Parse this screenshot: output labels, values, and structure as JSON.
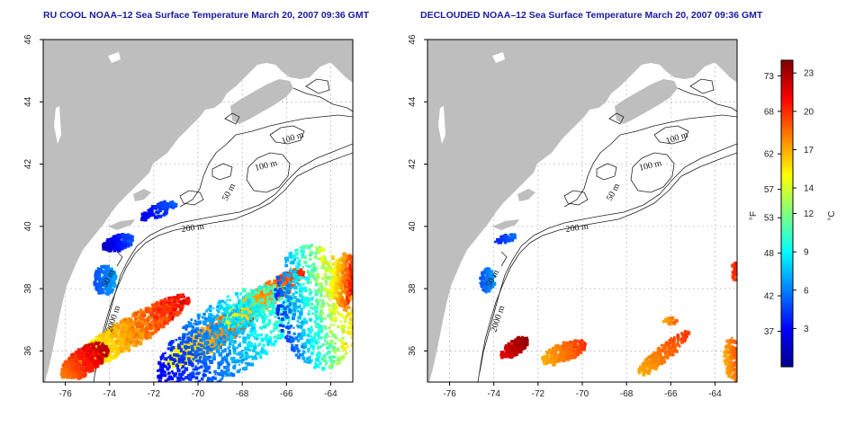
{
  "panels": [
    {
      "title": "RU COOL NOAA–12 Sea Surface Temperature March 20, 2007 09:36 GMT",
      "contour_labels": [
        "100 m",
        "100 m",
        "50 m",
        "200 m",
        "50 m",
        "2000 m"
      ]
    },
    {
      "title": "DECLOUDED NOAA–12 Sea Surface Temperature March 20, 2007 09:36 GMT",
      "contour_labels": [
        "100 m",
        "100 m",
        "50 m",
        "200 m",
        "50 m",
        "2000 m"
      ]
    }
  ],
  "axes": {
    "lon_ticks": [
      "-76",
      "-74",
      "-72",
      "-70",
      "-68",
      "-66",
      "-64"
    ],
    "lat_ticks": [
      "36",
      "38",
      "40",
      "42",
      "44",
      "46"
    ],
    "lon_range": [
      -77,
      -63
    ],
    "lat_range": [
      35,
      46
    ]
  },
  "colorbar": {
    "fahrenheit_label": "°F",
    "celsius_label": "°C",
    "fahrenheit_ticks": [
      "73",
      "68",
      "62",
      "57",
      "53",
      "48",
      "42",
      "37"
    ],
    "celsius_ticks": [
      "23",
      "20",
      "17",
      "14",
      "12",
      "9",
      "6",
      "3"
    ],
    "range_c": [
      0,
      24
    ],
    "colors": [
      "#00008f",
      "#0000ff",
      "#0080ff",
      "#00ffff",
      "#80ff80",
      "#ffff00",
      "#ff8000",
      "#ff0000",
      "#800000"
    ]
  },
  "colors": {
    "land": "#bebebe",
    "ocean": "#ffffff",
    "title": "#1a1aa0",
    "contour": "#222222",
    "grid": "#b4b4b4"
  }
}
